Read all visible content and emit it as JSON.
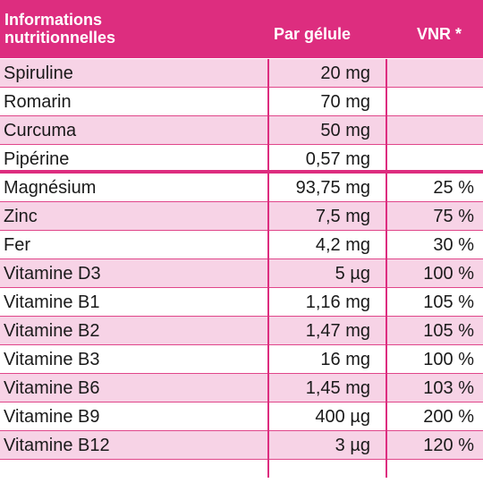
{
  "header": {
    "col1_line1": "Informations",
    "col1_line2": "nutritionnelles",
    "col2": "Par gélule",
    "col3": "VNR *"
  },
  "colors": {
    "header_bg": "#dd2d7f",
    "stripe_bg": "#f7d3e6",
    "line": "#dd2d7f"
  },
  "rows": [
    {
      "name": "Spiruline",
      "amount": "20 mg",
      "vnr": ""
    },
    {
      "name": "Romarin",
      "amount": "70 mg",
      "vnr": ""
    },
    {
      "name": "Curcuma",
      "amount": "50 mg",
      "vnr": ""
    },
    {
      "name": "Pipérine",
      "amount": "0,57 mg",
      "vnr": ""
    },
    {
      "name": "Magnésium",
      "amount": "93,75 mg",
      "vnr": "25 %"
    },
    {
      "name": "Zinc",
      "amount": "7,5 mg",
      "vnr": "75 %"
    },
    {
      "name": "Fer",
      "amount": "4,2 mg",
      "vnr": "30 %"
    },
    {
      "name": "Vitamine D3",
      "amount": "5 µg",
      "vnr": "100 %"
    },
    {
      "name": "Vitamine B1",
      "amount": "1,16 mg",
      "vnr": "105 %"
    },
    {
      "name": "Vitamine B2",
      "amount": "1,47 mg",
      "vnr": "105 %"
    },
    {
      "name": "Vitamine B3",
      "amount": "16 mg",
      "vnr": "100 %"
    },
    {
      "name": "Vitamine B6",
      "amount": "1,45 mg",
      "vnr": "103 %"
    },
    {
      "name": "Vitamine B9",
      "amount": "400 µg",
      "vnr": "200 %"
    },
    {
      "name": "Vitamine B12",
      "amount": "3 µg",
      "vnr": "120 %"
    }
  ]
}
